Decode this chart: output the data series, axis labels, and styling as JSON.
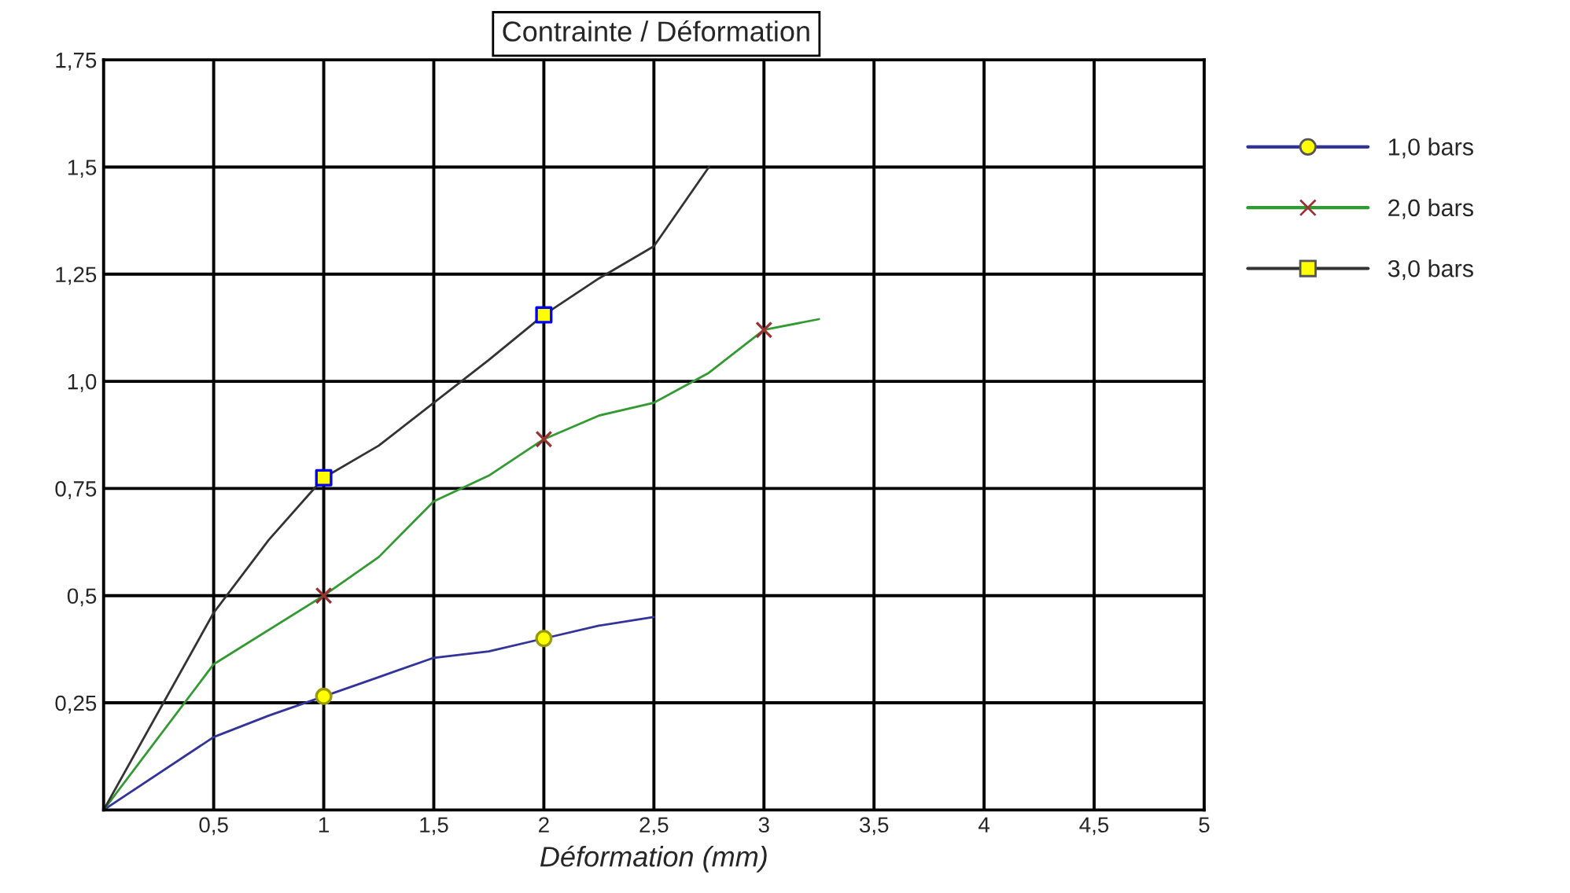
{
  "chart_data": {
    "type": "line",
    "title": "Contrainte / Déformation",
    "xlabel": "Déformation (mm)",
    "xlim": [
      0,
      5
    ],
    "ylim": [
      0,
      1.75
    ],
    "xticks": [
      {
        "value": 0.5,
        "label": "0,5"
      },
      1,
      {
        "value": 1.5,
        "label": "1,5"
      },
      2,
      {
        "value": 2.5,
        "label": "2,5"
      },
      3,
      {
        "value": 3.5,
        "label": "3,5"
      },
      4,
      {
        "value": 4.5,
        "label": "4,5"
      },
      5
    ],
    "yticks": [
      {
        "value": 0.25,
        "label": "0,25"
      },
      {
        "value": 0.5,
        "label": "0,5"
      },
      {
        "value": 0.75,
        "label": "0,75"
      },
      {
        "value": 1.0,
        "label": "1,0"
      },
      {
        "value": 1.25,
        "label": "1,25"
      },
      {
        "value": 1.5,
        "label": "1,5"
      },
      {
        "value": 1.75,
        "label": "1,75"
      }
    ],
    "grid": true,
    "legend": "right",
    "line_style": "solid",
    "series": [
      {
        "name": "1,0 bars",
        "color": "#333399",
        "x": [
          0,
          0.5,
          0.75,
          1,
          1.25,
          1.5,
          1.75,
          2,
          2.25,
          2.5
        ],
        "values": [
          0,
          0.17,
          0.22,
          0.265,
          0.31,
          0.355,
          0.37,
          0.4,
          0.43,
          0.45
        ]
      },
      {
        "type": "scatter",
        "marker": "circle",
        "color": "#ffff00",
        "x": [
          1,
          2
        ],
        "values": [
          0.265,
          0.4
        ]
      },
      {
        "name": "2,0 bars",
        "color": "#339933",
        "x": [
          0,
          0.5,
          1,
          1.25,
          1.5,
          1.75,
          2,
          2.25,
          2.5,
          2.75,
          3,
          3.25
        ],
        "values": [
          0,
          0.34,
          0.5,
          0.59,
          0.72,
          0.78,
          0.865,
          0.92,
          0.95,
          1.02,
          1.12,
          1.145
        ]
      },
      {
        "type": "scatter",
        "marker": "cross",
        "color": "#993333",
        "x": [
          1,
          2,
          3
        ],
        "values": [
          0.5,
          0.865,
          1.12
        ]
      },
      {
        "name": "3,0 bars",
        "color": "#333333",
        "x": [
          0,
          0.5,
          0.75,
          1,
          1.25,
          1.5,
          1.75,
          2,
          2.25,
          2.5,
          2.75
        ],
        "values": [
          0,
          0.46,
          0.63,
          0.775,
          0.85,
          0.95,
          1.05,
          1.155,
          1.24,
          1.315,
          1.5
        ]
      },
      {
        "type": "scatter",
        "marker": "square",
        "color": "#ffff00",
        "x": [
          1,
          2
        ],
        "values": [
          0.775,
          1.155
        ]
      }
    ]
  }
}
